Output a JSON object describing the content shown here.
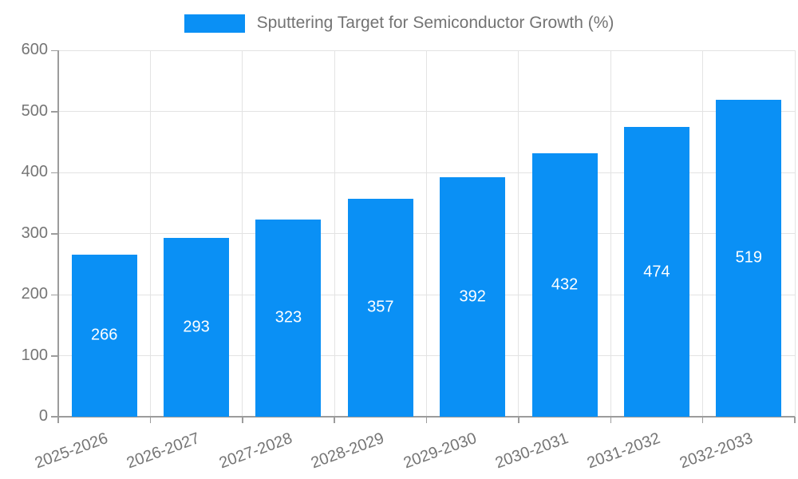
{
  "legend": {
    "label": "Sputtering Target for Semiconductor Growth (%)"
  },
  "colors": {
    "bar": "#0a90f5",
    "axis": "#9c9c9c",
    "grid": "#e3e3e3",
    "tick_text": "#757575",
    "legend_text": "#737373",
    "value_label": "#ffffff",
    "background": "#ffffff"
  },
  "chart_data": {
    "type": "bar",
    "title": "Sputtering Target for Semiconductor Growth (%)",
    "categories": [
      "2025-2026",
      "2026-2027",
      "2027-2028",
      "2028-2029",
      "2029-2030",
      "2030-2031",
      "2031-2032",
      "2032-2033"
    ],
    "values": [
      266,
      293,
      323,
      357,
      392,
      432,
      474,
      519
    ],
    "xlabel": "",
    "ylabel": "",
    "ylim": [
      0,
      600
    ],
    "yticks": [
      0,
      100,
      200,
      300,
      400,
      500,
      600
    ],
    "grid": true,
    "legend_position": "top-center",
    "value_labels": "inside-center",
    "x_tick_rotation_deg": -20
  }
}
